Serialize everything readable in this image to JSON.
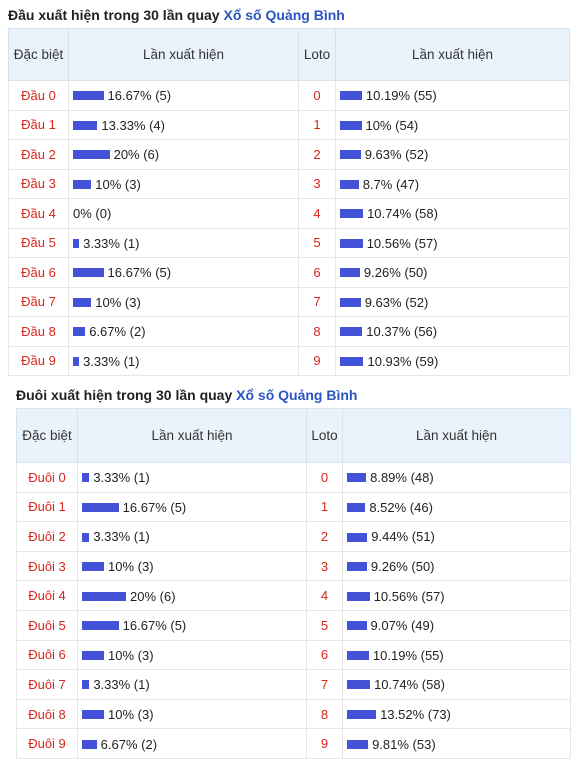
{
  "dau": {
    "title_prefix": "Đầu xuất hiện trong 30 lần quay ",
    "title_link": "Xổ số Quảng Bình",
    "headers": {
      "dacbiet": "Đặc biệt",
      "lan_xuat_hien": "Lần xuất hiện",
      "loto": "Loto",
      "lan_xuat_hien_2": "Lần xuất hiện"
    },
    "rows": [
      {
        "label": "Đầu 0",
        "pct": 16.67,
        "text": "16.67% (5)",
        "loto": "0",
        "loto_pct": 10.19,
        "loto_text": "10.19% (55)"
      },
      {
        "label": "Đầu 1",
        "pct": 13.33,
        "text": "13.33% (4)",
        "loto": "1",
        "loto_pct": 10.0,
        "loto_text": "10% (54)"
      },
      {
        "label": "Đầu 2",
        "pct": 20.0,
        "text": "20% (6)",
        "loto": "2",
        "loto_pct": 9.63,
        "loto_text": "9.63% (52)"
      },
      {
        "label": "Đầu 3",
        "pct": 10.0,
        "text": "10% (3)",
        "loto": "3",
        "loto_pct": 8.7,
        "loto_text": "8.7% (47)"
      },
      {
        "label": "Đầu 4",
        "pct": 0,
        "text": "0% (0)",
        "loto": "4",
        "loto_pct": 10.74,
        "loto_text": "10.74% (58)"
      },
      {
        "label": "Đầu 5",
        "pct": 3.33,
        "text": "3.33% (1)",
        "loto": "5",
        "loto_pct": 10.56,
        "loto_text": "10.56% (57)"
      },
      {
        "label": "Đầu 6",
        "pct": 16.67,
        "text": "16.67% (5)",
        "loto": "6",
        "loto_pct": 9.26,
        "loto_text": "9.26% (50)"
      },
      {
        "label": "Đầu 7",
        "pct": 10.0,
        "text": "10% (3)",
        "loto": "7",
        "loto_pct": 9.63,
        "loto_text": "9.63% (52)"
      },
      {
        "label": "Đầu 8",
        "pct": 6.67,
        "text": "6.67% (2)",
        "loto": "8",
        "loto_pct": 10.37,
        "loto_text": "10.37% (56)"
      },
      {
        "label": "Đầu 9",
        "pct": 3.33,
        "text": "3.33% (1)",
        "loto": "9",
        "loto_pct": 10.93,
        "loto_text": "10.93% (59)"
      }
    ]
  },
  "duoi": {
    "title_prefix": "Đuôi xuất hiện trong 30 lần quay ",
    "title_link": "Xổ số Quảng Bình",
    "headers": {
      "dacbiet": "Đặc biệt",
      "lan_xuat_hien": "Lần xuất hiện",
      "loto": "Loto",
      "lan_xuat_hien_2": "Lần xuất hiện"
    },
    "rows": [
      {
        "label": "Đuôi 0",
        "pct": 3.33,
        "text": "3.33% (1)",
        "loto": "0",
        "loto_pct": 8.89,
        "loto_text": "8.89% (48)"
      },
      {
        "label": "Đuôi 1",
        "pct": 16.67,
        "text": "16.67% (5)",
        "loto": "1",
        "loto_pct": 8.52,
        "loto_text": "8.52% (46)"
      },
      {
        "label": "Đuôi 2",
        "pct": 3.33,
        "text": "3.33% (1)",
        "loto": "2",
        "loto_pct": 9.44,
        "loto_text": "9.44% (51)"
      },
      {
        "label": "Đuôi 3",
        "pct": 10.0,
        "text": "10% (3)",
        "loto": "3",
        "loto_pct": 9.26,
        "loto_text": "9.26% (50)"
      },
      {
        "label": "Đuôi 4",
        "pct": 20.0,
        "text": "20% (6)",
        "loto": "4",
        "loto_pct": 10.56,
        "loto_text": "10.56% (57)"
      },
      {
        "label": "Đuôi 5",
        "pct": 16.67,
        "text": "16.67% (5)",
        "loto": "5",
        "loto_pct": 9.07,
        "loto_text": "9.07% (49)"
      },
      {
        "label": "Đuôi 6",
        "pct": 10.0,
        "text": "10% (3)",
        "loto": "6",
        "loto_pct": 10.19,
        "loto_text": "10.19% (55)"
      },
      {
        "label": "Đuôi 7",
        "pct": 3.33,
        "text": "3.33% (1)",
        "loto": "7",
        "loto_pct": 10.74,
        "loto_text": "10.74% (58)"
      },
      {
        "label": "Đuôi 8",
        "pct": 10.0,
        "text": "10% (3)",
        "loto": "8",
        "loto_pct": 13.52,
        "loto_text": "13.52% (73)"
      },
      {
        "label": "Đuôi 9",
        "pct": 6.67,
        "text": "6.67% (2)",
        "loto": "9",
        "loto_pct": 9.81,
        "loto_text": "9.81% (53)"
      }
    ]
  },
  "colors": {
    "bar": "#4452d8",
    "label_red": "#d9261c",
    "link_blue": "#2a55c0",
    "header_bg": "#eaf3fb"
  }
}
